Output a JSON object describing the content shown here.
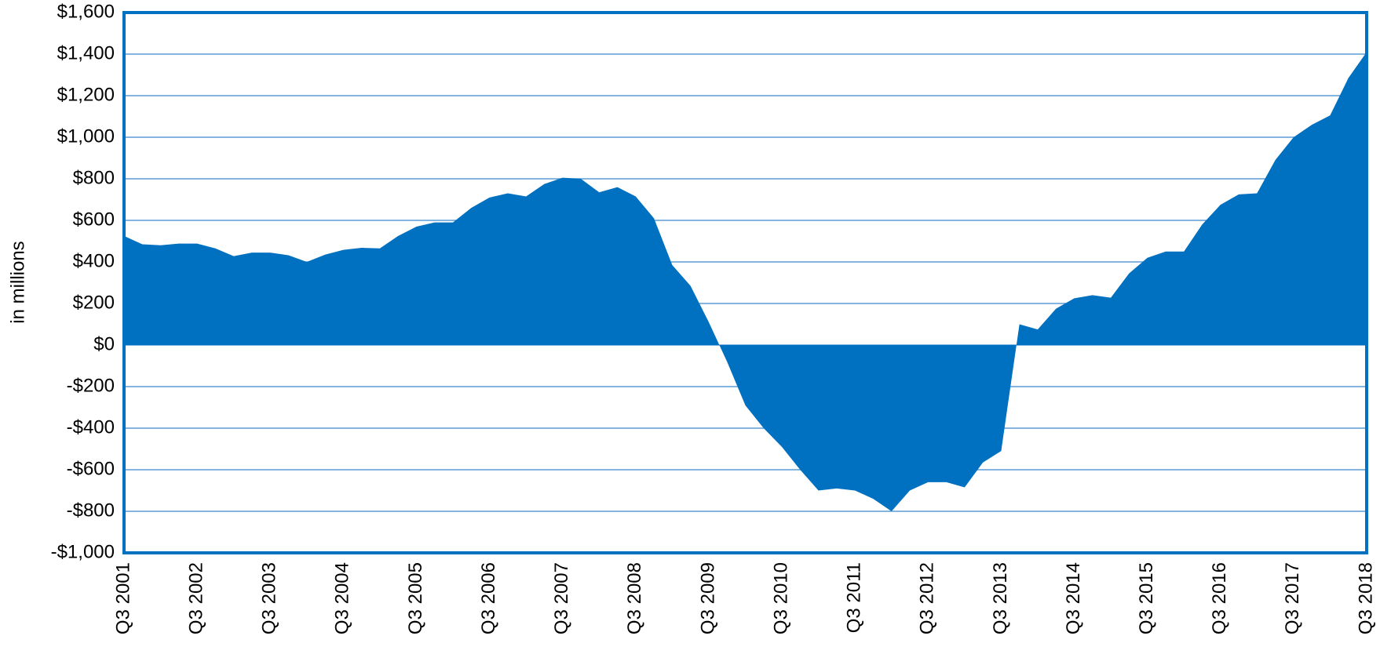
{
  "chart_data": {
    "type": "area",
    "y_label": "in millions",
    "categories": [
      "Q3 2001",
      null,
      null,
      null,
      "Q3 2002",
      null,
      null,
      null,
      "Q3 2003",
      null,
      null,
      null,
      "Q3 2004",
      null,
      null,
      null,
      "Q3 2005",
      null,
      null,
      null,
      "Q3 2006",
      null,
      null,
      null,
      "Q3 2007",
      null,
      null,
      null,
      "Q3 2008",
      null,
      null,
      null,
      "Q3 2009",
      null,
      null,
      null,
      "Q3 2010",
      null,
      null,
      null,
      "Q3 2011",
      null,
      null,
      null,
      "Q3 2012",
      null,
      null,
      null,
      "Q3 2013",
      null,
      null,
      null,
      "Q3 2014",
      null,
      null,
      null,
      "Q3 2015",
      null,
      null,
      null,
      "Q3 2016",
      null,
      null,
      null,
      "Q3 2017",
      null,
      null,
      null,
      "Q3 2018"
    ],
    "values": [
      525,
      485,
      480,
      488,
      488,
      465,
      428,
      445,
      445,
      432,
      400,
      435,
      458,
      468,
      465,
      525,
      570,
      590,
      590,
      660,
      710,
      730,
      715,
      775,
      805,
      800,
      735,
      760,
      715,
      610,
      385,
      285,
      110,
      -80,
      -290,
      -400,
      -490,
      -600,
      -700,
      -690,
      -700,
      -740,
      -800,
      -700,
      -660,
      -660,
      -685,
      -565,
      -510,
      100,
      75,
      175,
      225,
      240,
      228,
      345,
      420,
      450,
      450,
      580,
      675,
      725,
      730,
      890,
      1000,
      1060,
      1105,
      1285,
      1410
    ],
    "color": "#0070c0",
    "ylim": [
      -1000,
      1600
    ],
    "yticks": [
      {
        "value": -1000,
        "label": "-$1,000"
      },
      {
        "value": -800,
        "label": "-$800"
      },
      {
        "value": -600,
        "label": "-$600"
      },
      {
        "value": -400,
        "label": "-$400"
      },
      {
        "value": -200,
        "label": "-$200"
      },
      {
        "value": 0,
        "label": "$0"
      },
      {
        "value": 200,
        "label": "$200"
      },
      {
        "value": 400,
        "label": "$400"
      },
      {
        "value": 600,
        "label": "$600"
      },
      {
        "value": 800,
        "label": "$800"
      },
      {
        "value": 1000,
        "label": "$1,000"
      },
      {
        "value": 1200,
        "label": "$1,200"
      },
      {
        "value": 1400,
        "label": "$1,400"
      },
      {
        "value": 1600,
        "label": "$1,600"
      }
    ],
    "grid": true
  }
}
